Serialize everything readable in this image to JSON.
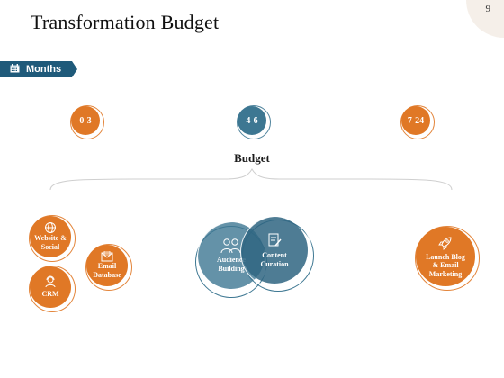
{
  "header": {
    "title": "Transformation Budget",
    "page_number": "9"
  },
  "months_tag": {
    "label": "Months",
    "icon": "calendar-icon"
  },
  "timeline": {
    "nodes": [
      {
        "label": "0-3"
      },
      {
        "label": "4-6"
      },
      {
        "label": "7-24"
      }
    ]
  },
  "budget": {
    "label": "Budget"
  },
  "groups": {
    "left": [
      {
        "label": "Website & Social",
        "icon": "globe-icon"
      },
      {
        "label": "Email Database",
        "icon": "envelope-icon"
      },
      {
        "label": "CRM",
        "icon": "user-headset-icon"
      }
    ],
    "center": [
      {
        "label": "Audience Building",
        "icon": "people-icon"
      },
      {
        "label": "Content Curation",
        "icon": "document-edit-icon"
      }
    ],
    "right": [
      {
        "label": "Launch Blog & Email Marketing",
        "icon": "rocket-icon"
      }
    ]
  },
  "colors": {
    "orange": "#e07826",
    "blue": "#3d7792",
    "navy": "#1f5a7a"
  }
}
